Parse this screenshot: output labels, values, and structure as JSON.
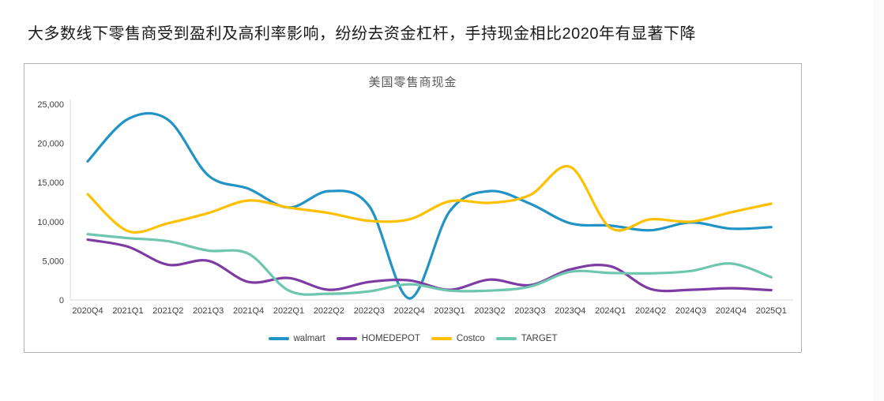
{
  "page": {
    "heading": "大多数线下零售商受到盈利及高利率影响，纷纷去资金杠杆，手持现金相比2020年有显著下降"
  },
  "chart_data": {
    "type": "line",
    "title": "美国零售商现金",
    "categories": [
      "2020Q4",
      "2021Q1",
      "2021Q2",
      "2021Q3",
      "2021Q4",
      "2022Q1",
      "2022Q2",
      "2022Q3",
      "2022Q4",
      "2023Q1",
      "2023Q2",
      "2023Q3",
      "2023Q4",
      "2024Q1",
      "2024Q2",
      "2024Q3",
      "2024Q4",
      "2025Q1"
    ],
    "series": [
      {
        "name": "walmart",
        "color": "#2193C4",
        "values": [
          17700,
          23100,
          23000,
          15900,
          14200,
          11800,
          13900,
          12000,
          200,
          11300,
          13900,
          12300,
          9800,
          9500,
          8900,
          9900,
          9100,
          9300
        ]
      },
      {
        "name": "HOMEDEPOT",
        "color": "#7D3CA3",
        "values": [
          7700,
          6800,
          4500,
          5000,
          2300,
          2800,
          1300,
          2300,
          2500,
          1300,
          2600,
          1900,
          3900,
          4300,
          1400,
          1300,
          1500,
          1250
        ]
      },
      {
        "name": "Costco",
        "color": "#FFC000",
        "values": [
          13500,
          8800,
          9800,
          11100,
          12700,
          11800,
          11100,
          10100,
          10300,
          12600,
          12400,
          13400,
          17000,
          9200,
          10300,
          10000,
          11200,
          12300
        ]
      },
      {
        "name": "TARGET",
        "color": "#6EC6AE",
        "values": [
          8400,
          7900,
          7500,
          6300,
          5900,
          1200,
          800,
          1100,
          2000,
          1200,
          1200,
          1700,
          3600,
          3450,
          3400,
          3700,
          4650,
          2900
        ]
      }
    ],
    "ylim": [
      0,
      25000
    ],
    "y_ticks": [
      "0",
      "5,000",
      "10,000",
      "15,000",
      "20,000",
      "25,000"
    ],
    "xlabel": "",
    "ylabel": "",
    "grid": false,
    "smooth": true,
    "legend_position": "bottom"
  }
}
